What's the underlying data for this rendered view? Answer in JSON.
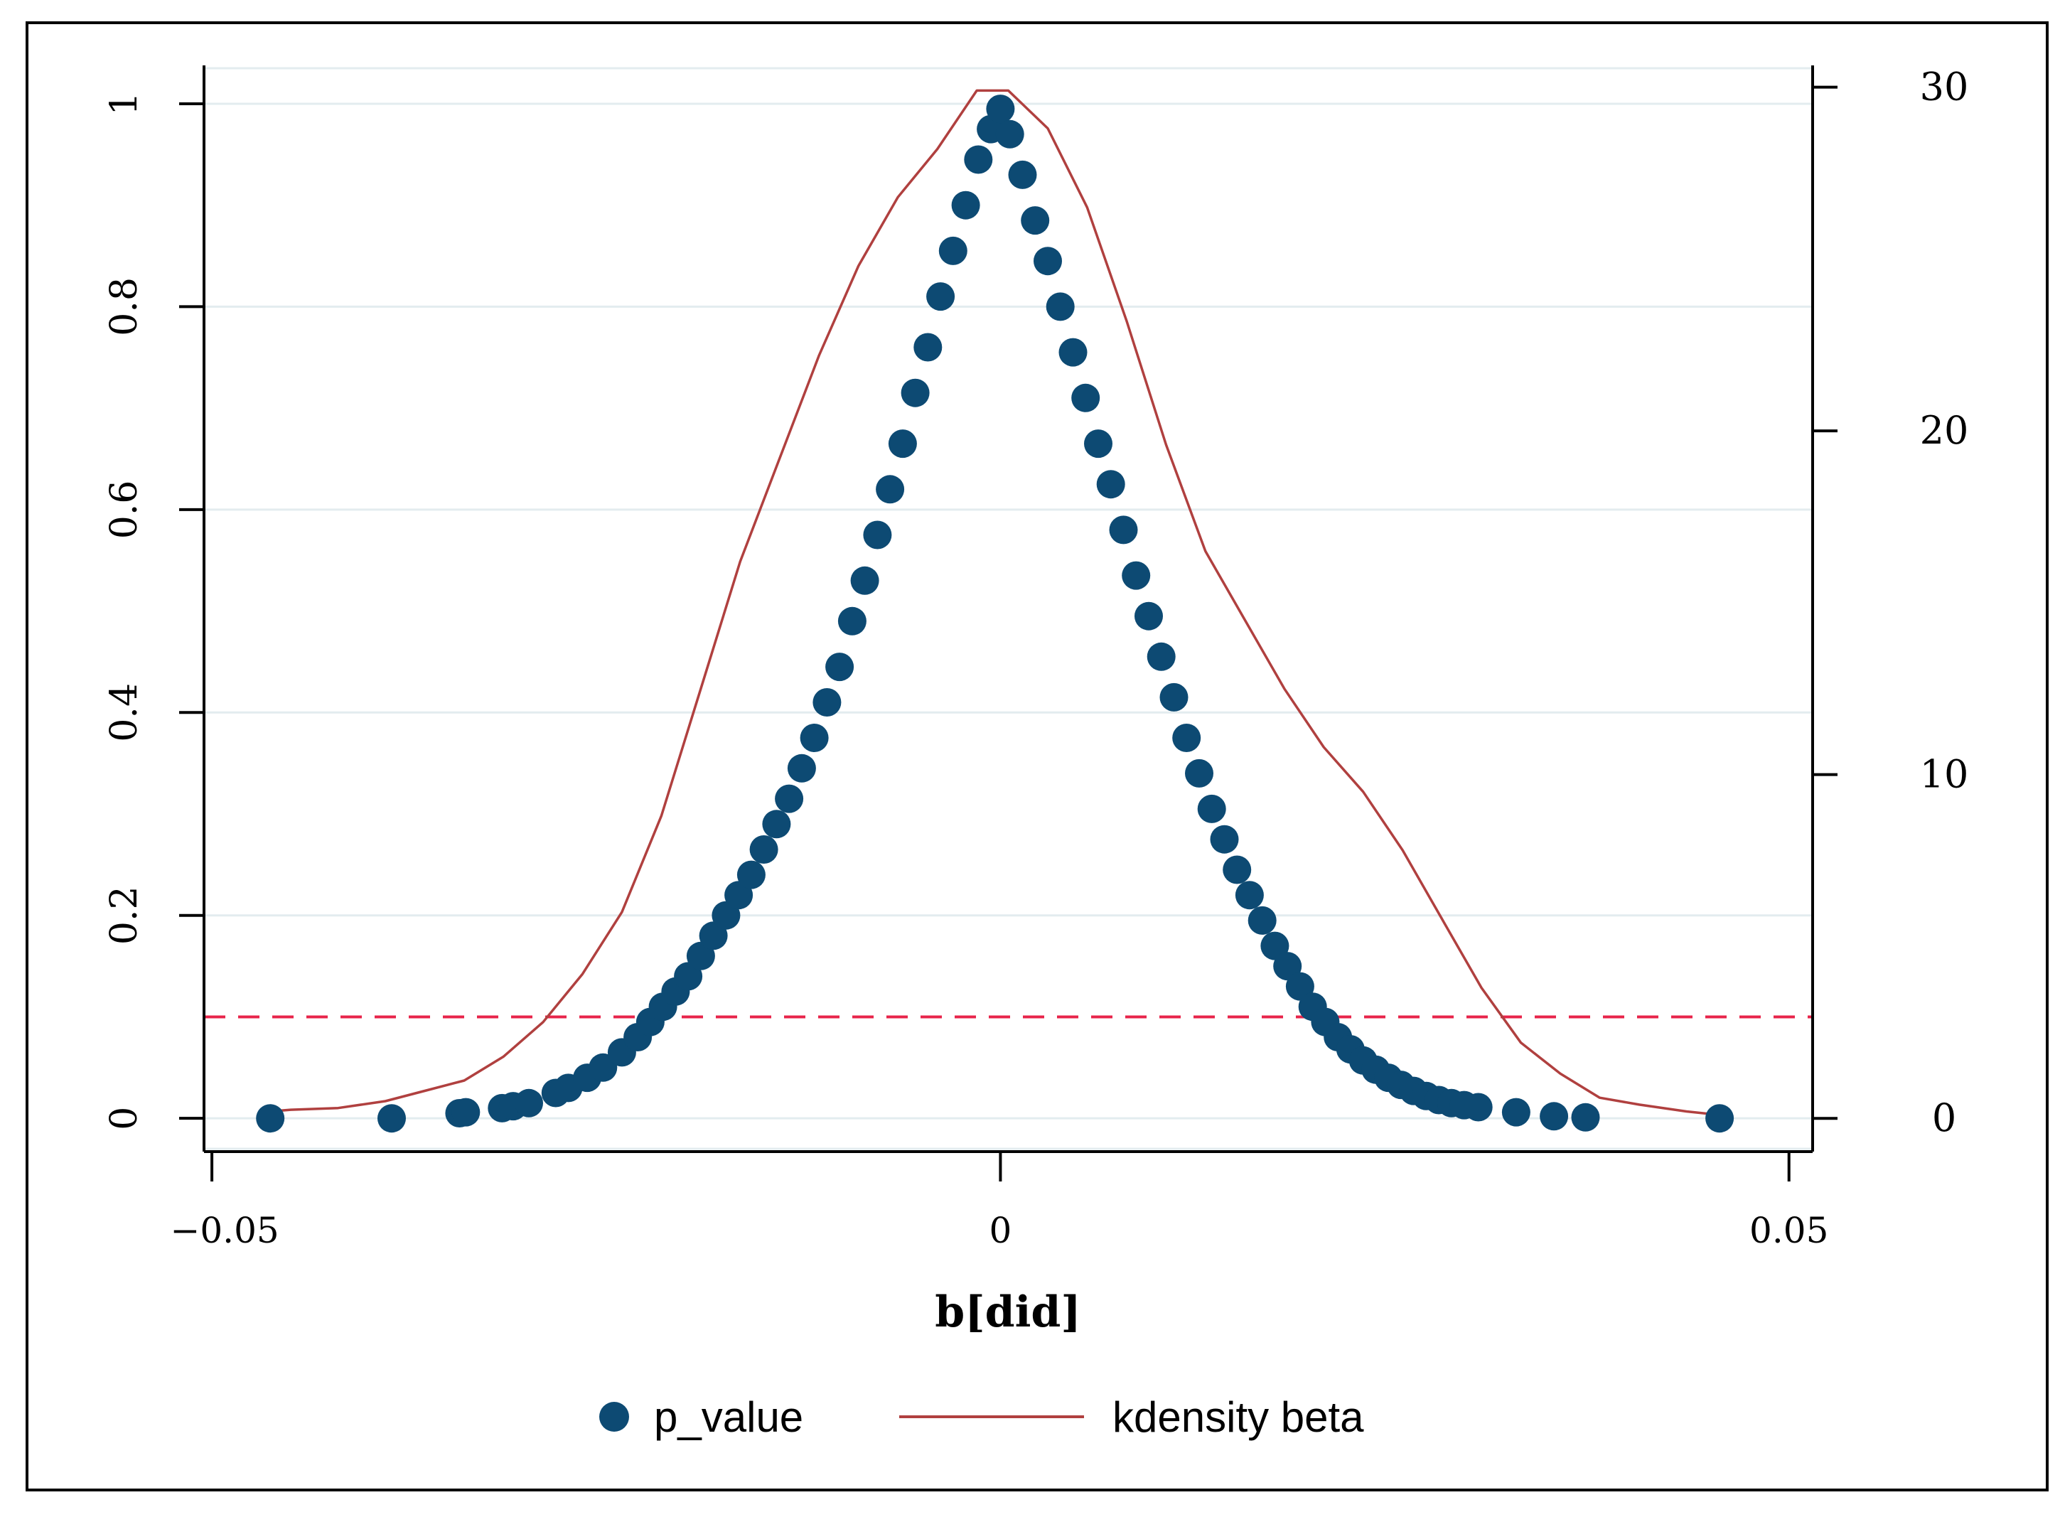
{
  "chart_data": {
    "type": "scatter",
    "xlabel": "b[did]",
    "x_ticks": [
      -0.05,
      0,
      0.05
    ],
    "x_tick_labels": [
      "−0.05",
      "0",
      "0.05"
    ],
    "xlim": [
      -0.0505,
      0.0515
    ],
    "y_left": {
      "ylim": [
        -0.03,
        1.035
      ],
      "ticks": [
        0,
        0.2,
        0.4,
        0.6,
        0.8,
        1
      ],
      "tick_labels": [
        "0",
        "0.2",
        "0.4",
        "0.6",
        "0.8",
        "1"
      ],
      "gridlines": true
    },
    "y_right": {
      "ylim": [
        -0.885,
        30.55
      ],
      "ticks": [
        0,
        10,
        20,
        30
      ],
      "tick_labels": [
        "0",
        "10",
        "20",
        "30"
      ]
    },
    "reference_line": {
      "axis": "y_left",
      "value": 0.1,
      "style": "dashed",
      "color": "#e8244a"
    },
    "series": [
      {
        "name": "p_value",
        "kind": "scatter",
        "axis": "y_left",
        "color": "#0d4a73",
        "points": [
          [
            -0.0463,
            0.0
          ],
          [
            -0.0386,
            0.0
          ],
          [
            -0.0343,
            0.005
          ],
          [
            -0.0339,
            0.006
          ],
          [
            -0.0316,
            0.01
          ],
          [
            -0.0309,
            0.012
          ],
          [
            -0.0299,
            0.015
          ],
          [
            -0.0282,
            0.025
          ],
          [
            -0.0274,
            0.03
          ],
          [
            -0.0262,
            0.04
          ],
          [
            -0.0252,
            0.05
          ],
          [
            -0.024,
            0.065
          ],
          [
            -0.023,
            0.08
          ],
          [
            -0.0222,
            0.095
          ],
          [
            -0.0214,
            0.11
          ],
          [
            -0.0206,
            0.125
          ],
          [
            -0.0198,
            0.14
          ],
          [
            -0.019,
            0.16
          ],
          [
            -0.0182,
            0.18
          ],
          [
            -0.0174,
            0.2
          ],
          [
            -0.0166,
            0.22
          ],
          [
            -0.0158,
            0.24
          ],
          [
            -0.015,
            0.265
          ],
          [
            -0.0142,
            0.29
          ],
          [
            -0.0134,
            0.315
          ],
          [
            -0.0126,
            0.345
          ],
          [
            -0.0118,
            0.375
          ],
          [
            -0.011,
            0.41
          ],
          [
            -0.0102,
            0.445
          ],
          [
            -0.0094,
            0.49
          ],
          [
            -0.0086,
            0.53
          ],
          [
            -0.0078,
            0.575
          ],
          [
            -0.007,
            0.62
          ],
          [
            -0.0062,
            0.665
          ],
          [
            -0.0054,
            0.715
          ],
          [
            -0.0046,
            0.76
          ],
          [
            -0.0038,
            0.81
          ],
          [
            -0.003,
            0.855
          ],
          [
            -0.0022,
            0.9
          ],
          [
            -0.0014,
            0.945
          ],
          [
            -0.0006,
            0.975
          ],
          [
            0.0,
            0.995
          ],
          [
            0.0006,
            0.97
          ],
          [
            0.0014,
            0.93
          ],
          [
            0.0022,
            0.885
          ],
          [
            0.003,
            0.845
          ],
          [
            0.0038,
            0.8
          ],
          [
            0.0046,
            0.755
          ],
          [
            0.0054,
            0.71
          ],
          [
            0.0062,
            0.665
          ],
          [
            0.007,
            0.625
          ],
          [
            0.0078,
            0.58
          ],
          [
            0.0086,
            0.535
          ],
          [
            0.0094,
            0.495
          ],
          [
            0.0102,
            0.455
          ],
          [
            0.011,
            0.415
          ],
          [
            0.0118,
            0.375
          ],
          [
            0.0126,
            0.34
          ],
          [
            0.0134,
            0.305
          ],
          [
            0.0142,
            0.275
          ],
          [
            0.015,
            0.245
          ],
          [
            0.0158,
            0.22
          ],
          [
            0.0166,
            0.195
          ],
          [
            0.0174,
            0.17
          ],
          [
            0.0182,
            0.15
          ],
          [
            0.019,
            0.13
          ],
          [
            0.0198,
            0.11
          ],
          [
            0.0206,
            0.095
          ],
          [
            0.0214,
            0.08
          ],
          [
            0.0222,
            0.068
          ],
          [
            0.023,
            0.057
          ],
          [
            0.0238,
            0.048
          ],
          [
            0.0246,
            0.04
          ],
          [
            0.0254,
            0.033
          ],
          [
            0.0262,
            0.027
          ],
          [
            0.027,
            0.022
          ],
          [
            0.0278,
            0.018
          ],
          [
            0.0286,
            0.015
          ],
          [
            0.0294,
            0.013
          ],
          [
            0.0303,
            0.011
          ],
          [
            0.0327,
            0.006
          ],
          [
            0.0351,
            0.002
          ],
          [
            0.0371,
            0.001
          ],
          [
            0.0456,
            0.0
          ]
        ]
      },
      {
        "name": "kdensity beta",
        "kind": "line",
        "axis": "y_right",
        "color": "#b0403f",
        "points": [
          [
            -0.0463,
            0.2
          ],
          [
            -0.045,
            0.25
          ],
          [
            -0.042,
            0.3
          ],
          [
            -0.039,
            0.5
          ],
          [
            -0.0365,
            0.8
          ],
          [
            -0.034,
            1.1
          ],
          [
            -0.0315,
            1.8
          ],
          [
            -0.029,
            2.8
          ],
          [
            -0.0265,
            4.2
          ],
          [
            -0.024,
            6.0
          ],
          [
            -0.0215,
            8.8
          ],
          [
            -0.019,
            12.5
          ],
          [
            -0.0165,
            16.2
          ],
          [
            -0.014,
            19.2
          ],
          [
            -0.0115,
            22.2
          ],
          [
            -0.009,
            24.8
          ],
          [
            -0.0065,
            26.8
          ],
          [
            -0.004,
            28.2
          ],
          [
            -0.0015,
            29.9
          ],
          [
            0.0005,
            29.9
          ],
          [
            0.003,
            28.8
          ],
          [
            0.0055,
            26.5
          ],
          [
            0.008,
            23.2
          ],
          [
            0.0105,
            19.6
          ],
          [
            0.013,
            16.5
          ],
          [
            0.0155,
            14.5
          ],
          [
            0.018,
            12.5
          ],
          [
            0.0205,
            10.8
          ],
          [
            0.023,
            9.5
          ],
          [
            0.0255,
            7.8
          ],
          [
            0.028,
            5.8
          ],
          [
            0.0305,
            3.8
          ],
          [
            0.033,
            2.2
          ],
          [
            0.0355,
            1.3
          ],
          [
            0.038,
            0.6
          ],
          [
            0.0405,
            0.4
          ],
          [
            0.0435,
            0.2
          ],
          [
            0.0456,
            0.1
          ]
        ]
      }
    ],
    "legend": {
      "position": "bottom",
      "entries": [
        "p_value",
        "kdensity beta"
      ]
    }
  }
}
